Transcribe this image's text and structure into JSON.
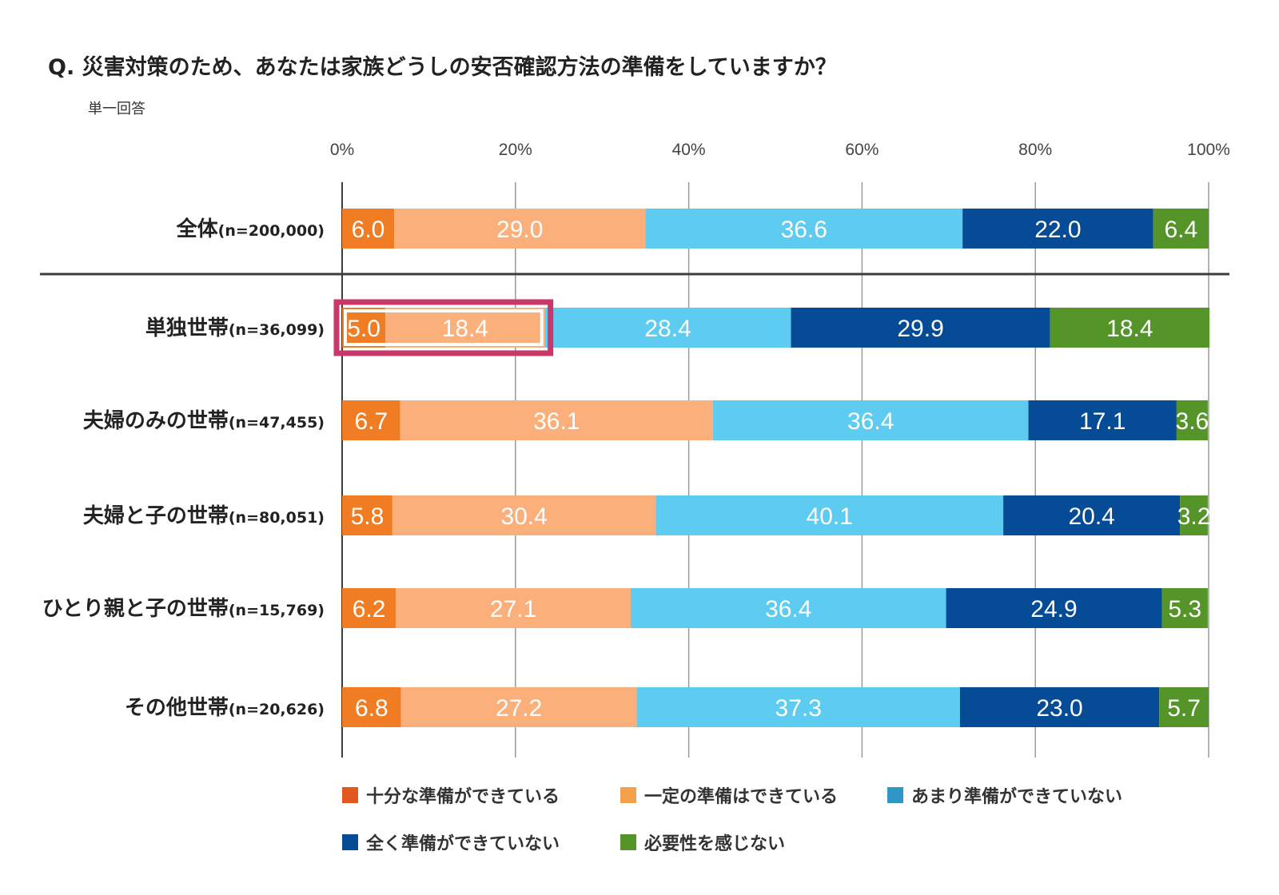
{
  "title": "Q. 災害対策のため、あなたは家族どうしの安否確認方法の準備をしていますか？",
  "subtitle": "単一回答",
  "colors": {
    "series": [
      "#f07d24",
      "#fbb07c",
      "#5ecbf0",
      "#064b95",
      "#549428"
    ],
    "legend_swatches": [
      "#e2571e",
      "#f5a04a",
      "#2f96c7",
      "#064b95",
      "#549428"
    ],
    "highlight": "#c8386a",
    "axis_line": "#3c3c3c",
    "grid": "#9a9a9a"
  },
  "chart_data": {
    "type": "bar",
    "orientation": "horizontal",
    "stacked": true,
    "title": "Q. 災害対策のため、あなたは家族どうしの安否確認方法の準備をしていますか？",
    "subtitle": "単一回答",
    "xlim": [
      0,
      100
    ],
    "x_ticks": [
      0,
      20,
      40,
      60,
      80,
      100
    ],
    "x_tick_labels": [
      "0%",
      "20%",
      "40%",
      "60%",
      "80%",
      "100%"
    ],
    "grid": true,
    "legend_position": "bottom",
    "categories": [
      {
        "name": "全体",
        "n": "(n=200,000)"
      },
      {
        "name": "単独世帯",
        "n": "(n=36,099)"
      },
      {
        "name": "夫婦のみの世帯",
        "n": "(n=47,455)"
      },
      {
        "name": "夫婦と子の世帯",
        "n": "(n=80,051)"
      },
      {
        "name": "ひとり親と子の世帯",
        "n": "(n=15,769)"
      },
      {
        "name": "その他世帯",
        "n": "(n=20,626)"
      }
    ],
    "series": [
      {
        "name": "十分な準備ができている",
        "values": [
          6.0,
          5.0,
          6.7,
          5.8,
          6.2,
          6.8
        ]
      },
      {
        "name": "一定の準備はできている",
        "values": [
          29.0,
          18.4,
          36.1,
          30.4,
          27.1,
          27.2
        ]
      },
      {
        "name": "あまり準備ができていない",
        "values": [
          36.6,
          28.4,
          36.4,
          40.1,
          36.4,
          37.3
        ]
      },
      {
        "name": "全く準備ができていない",
        "values": [
          22.0,
          29.9,
          17.1,
          20.4,
          24.9,
          23.0
        ]
      },
      {
        "name": "必要性を感じない",
        "values": [
          6.4,
          18.4,
          3.6,
          3.2,
          5.3,
          5.7
        ]
      }
    ],
    "separator_after_category": 0,
    "highlight": {
      "category": 1,
      "series": [
        0,
        1
      ]
    }
  }
}
